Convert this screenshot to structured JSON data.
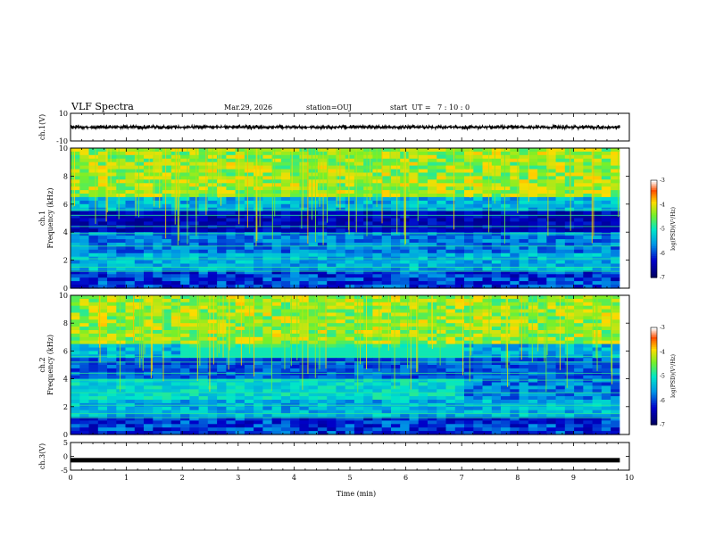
{
  "header": {
    "title": "VLF Spectra",
    "date": "Mar.29, 2026",
    "station": "station=OUJ",
    "start_ut": "start  UT =   7 : 10 : 0"
  },
  "chart_data": [
    {
      "type": "line",
      "panel": "ch1-waveform",
      "ylabel": "ch.1(V)",
      "ylim": [
        -10,
        10
      ],
      "yticks": [
        "10",
        "-10"
      ],
      "xlim": [
        0,
        10
      ],
      "signal_extent_min": 9.83,
      "signal_amplitude_range_v": [
        -2,
        2
      ]
    },
    {
      "type": "heatmap",
      "panel": "ch1-spectrogram",
      "ylabel_channel": "ch.1",
      "ylabel": "Frequency (kHz)",
      "ylim": [
        0,
        10
      ],
      "yticks": [
        "0",
        "2",
        "4",
        "6",
        "8",
        "10"
      ],
      "xlim": [
        0,
        10
      ],
      "data_extent_min": 9.83,
      "colorbar": {
        "label": "log(PSD)(V²/Hz)",
        "range": [
          -7,
          -3
        ],
        "ticks": [
          "-3",
          "-4",
          "-5",
          "-6",
          "-7"
        ]
      }
    },
    {
      "type": "heatmap",
      "panel": "ch2-spectrogram",
      "ylabel_channel": "ch.2",
      "ylabel": "Frequency (kHz)",
      "ylim": [
        0,
        10
      ],
      "yticks": [
        "0",
        "2",
        "4",
        "6",
        "8",
        "10"
      ],
      "xlim": [
        0,
        10
      ],
      "data_extent_min": 9.83,
      "colorbar": {
        "label": "log(PSD)(V²/Hz)",
        "range": [
          -7,
          -3
        ],
        "ticks": [
          "-3",
          "-4",
          "-5",
          "-6",
          "-7"
        ]
      }
    },
    {
      "type": "line",
      "panel": "ch3-waveform",
      "ylabel": "ch.3(V)",
      "ylim": [
        -5,
        5
      ],
      "yticks": [
        "5",
        "0",
        "-5"
      ],
      "xlim": [
        0,
        10
      ],
      "signal_extent_min": 9.83,
      "signal_level_v": -1.4
    }
  ],
  "xaxis": {
    "label": "Time (min)",
    "ticks": [
      "0",
      "1",
      "2",
      "3",
      "4",
      "5",
      "6",
      "7",
      "8",
      "9",
      "10"
    ]
  }
}
